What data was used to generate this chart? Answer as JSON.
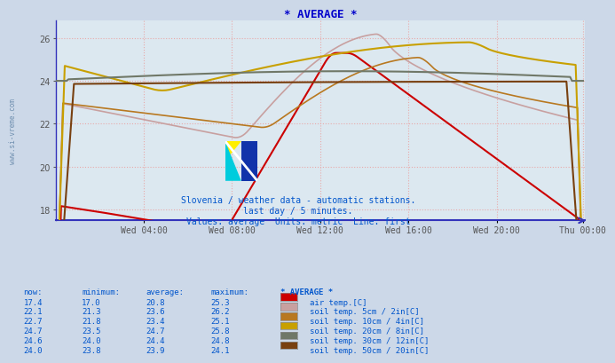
{
  "title": "* AVERAGE *",
  "title_color": "#0000cc",
  "bg_color": "#ccd8e8",
  "plot_bg_color": "#dce8f0",
  "subtitle1": "Slovenia / weather data - automatic stations.",
  "subtitle2": "last day / 5 minutes.",
  "subtitle3": "Values: average  Units: metric  Line: first",
  "xlabel_ticks": [
    "Wed 04:00",
    "Wed 08:00",
    "Wed 12:00",
    "Wed 16:00",
    "Wed 20:00",
    "Thu 00:00"
  ],
  "ylim": [
    17.5,
    26.8
  ],
  "yticks": [
    18,
    20,
    22,
    24,
    26
  ],
  "n_points": 288,
  "series_colors": {
    "air_temp": "#cc0000",
    "soil_5cm": "#c8a0a0",
    "soil_10cm": "#b87820",
    "soil_20cm": "#c8a000",
    "soil_30cm": "#707868",
    "soil_50cm": "#784010"
  },
  "series_labels": {
    "air_temp": "air temp.[C]",
    "soil_5cm": "soil temp. 5cm / 2in[C]",
    "soil_10cm": "soil temp. 10cm / 4in[C]",
    "soil_20cm": "soil temp. 20cm / 8in[C]",
    "soil_30cm": "soil temp. 30cm / 12in[C]",
    "soil_50cm": "soil temp. 50cm / 20in[C]"
  },
  "table_rows": [
    {
      "now": "17.4",
      "min": "17.0",
      "avg": "20.8",
      "max": "25.3",
      "key": "air_temp"
    },
    {
      "now": "22.1",
      "min": "21.3",
      "avg": "23.6",
      "max": "26.2",
      "key": "soil_5cm"
    },
    {
      "now": "22.7",
      "min": "21.8",
      "avg": "23.4",
      "max": "25.1",
      "key": "soil_10cm"
    },
    {
      "now": "24.7",
      "min": "23.5",
      "avg": "24.7",
      "max": "25.8",
      "key": "soil_20cm"
    },
    {
      "now": "24.6",
      "min": "24.0",
      "avg": "24.4",
      "max": "24.8",
      "key": "soil_30cm"
    },
    {
      "now": "24.0",
      "min": "23.8",
      "avg": "23.9",
      "max": "24.1",
      "key": "soil_50cm"
    }
  ],
  "table_color": "#0055cc",
  "watermark": "www.si-vreme.com",
  "watermark_color": "#7090b0",
  "axis_color": "#3333bb",
  "grid_color": "#e8aaaa",
  "tick_color": "#555555"
}
